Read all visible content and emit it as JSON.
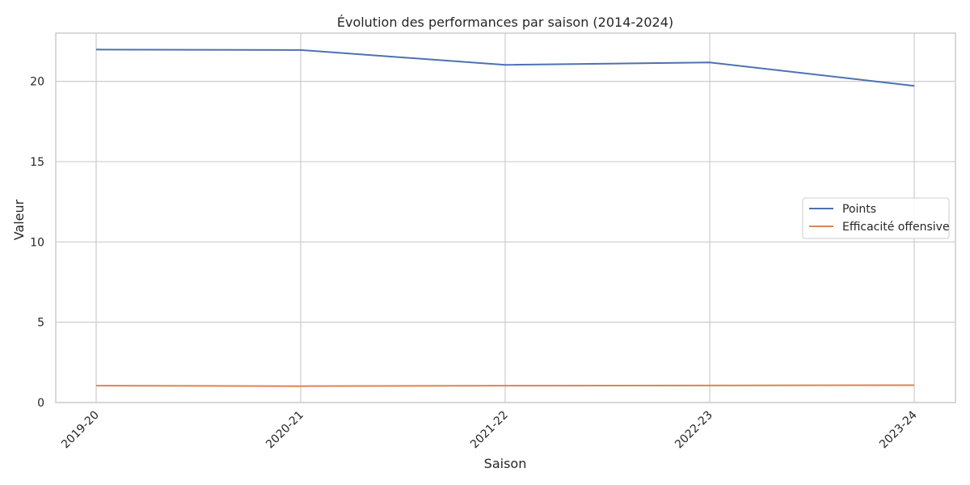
{
  "chart_data": {
    "type": "line",
    "title": "Évolution des performances par saison (2014-2024)",
    "xlabel": "Saison",
    "ylabel": "Valeur",
    "categories": [
      "2019-20",
      "2020-21",
      "2021-22",
      "2022-23",
      "2023-24"
    ],
    "y_ticks": [
      "0",
      "5",
      "10",
      "15",
      "20"
    ],
    "ylim": [
      0,
      23
    ],
    "grid": true,
    "legend_position": "center-right",
    "series": [
      {
        "name": "Points",
        "color": "#4c72b0",
        "values": [
          21.98,
          21.95,
          21.02,
          21.18,
          19.72
        ]
      },
      {
        "name": "Efficacité offensive",
        "color": "#dd8452",
        "values": [
          1.05,
          1.02,
          1.05,
          1.06,
          1.08
        ]
      }
    ]
  }
}
